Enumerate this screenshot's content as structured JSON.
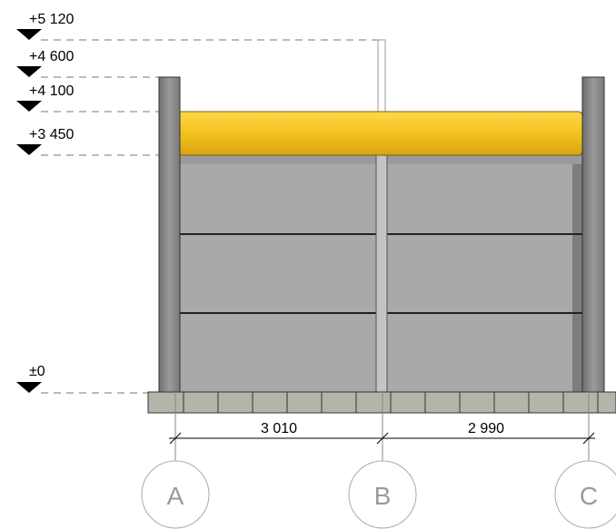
{
  "levels": [
    {
      "label": "+5 120"
    },
    {
      "label": "+4 600"
    },
    {
      "label": "+4 100"
    },
    {
      "label": "+3 450"
    },
    {
      "label": "±0"
    }
  ],
  "dimensions": [
    "3 010",
    "2 990"
  ],
  "axes": [
    "A",
    "B",
    "C"
  ]
}
